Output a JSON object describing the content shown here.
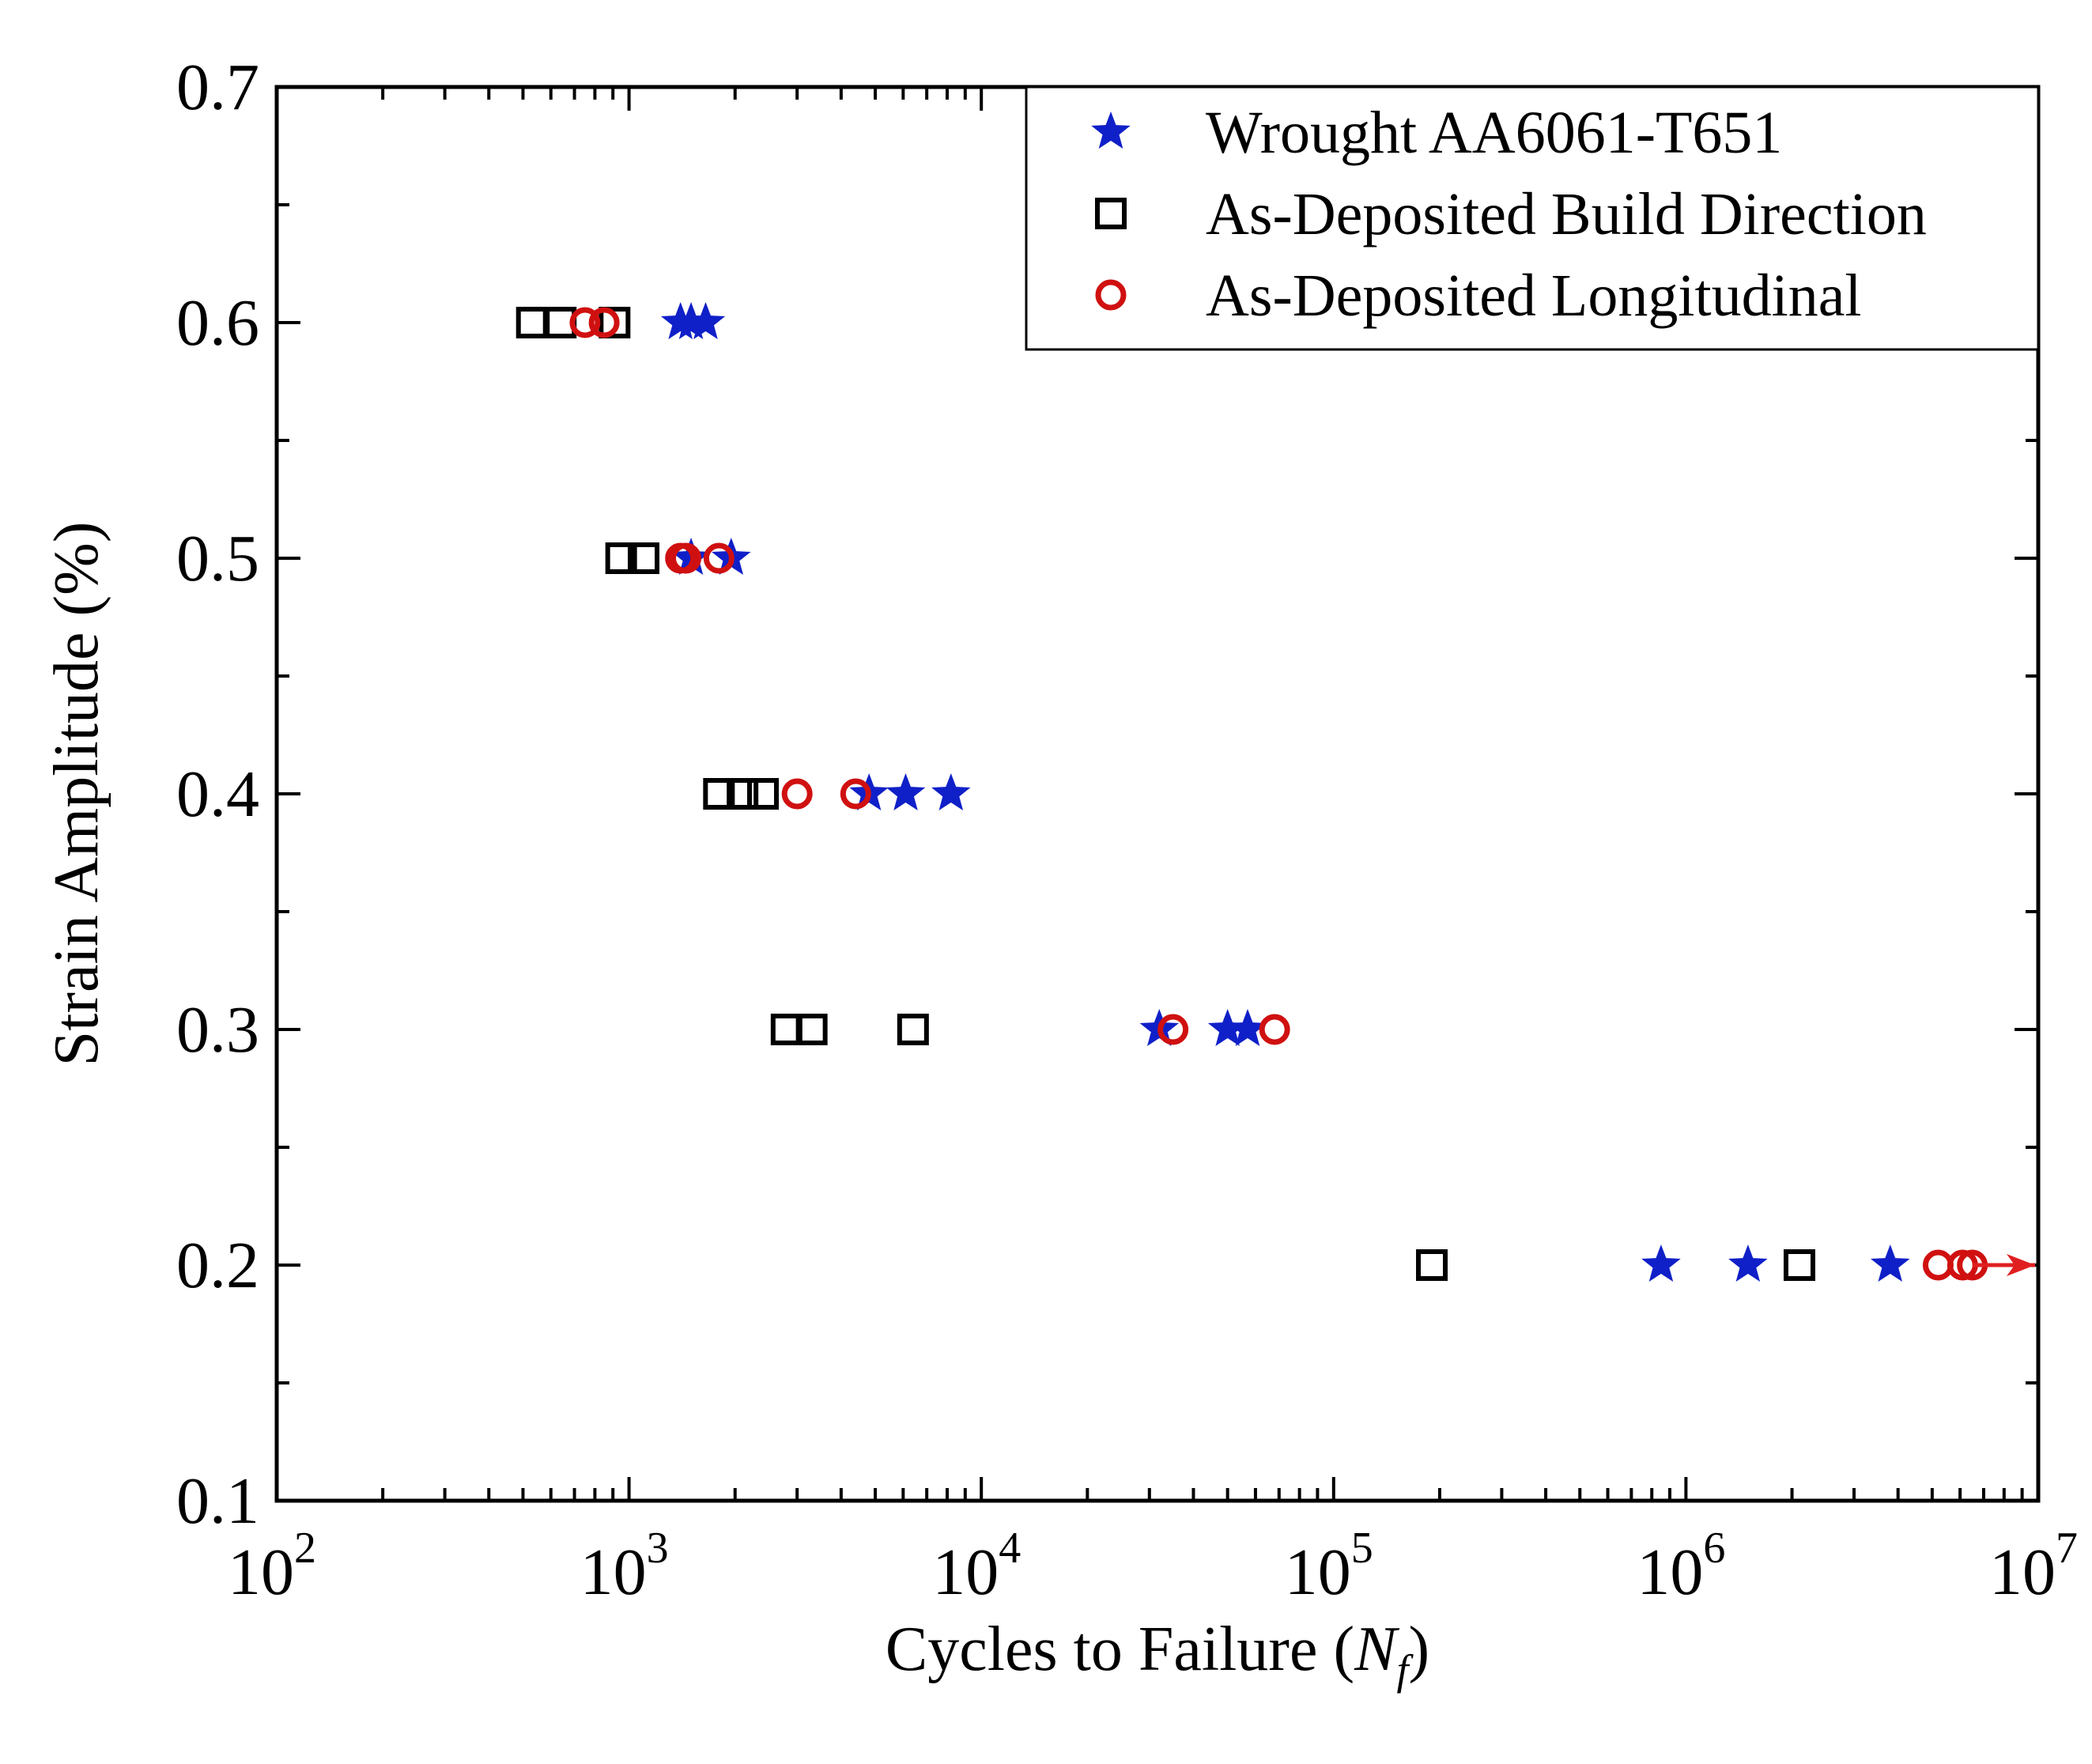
{
  "chart_data": {
    "type": "scatter",
    "title": "",
    "xlabel_prefix": "Cycles to Failure (",
    "xlabel_symbol": "N",
    "xlabel_subscript": "f",
    "xlabel_suffix": ")",
    "ylabel": "Strain Amplitude (%)",
    "x_scale": "log",
    "xlim": [
      100,
      10000000
    ],
    "ylim": [
      0.1,
      0.7
    ],
    "x_ticks": [
      {
        "base": "10",
        "exp": "2",
        "value": 100
      },
      {
        "base": "10",
        "exp": "3",
        "value": 1000
      },
      {
        "base": "10",
        "exp": "4",
        "value": 10000
      },
      {
        "base": "10",
        "exp": "5",
        "value": 100000
      },
      {
        "base": "10",
        "exp": "6",
        "value": 1000000
      },
      {
        "base": "10",
        "exp": "7",
        "value": 10000000
      }
    ],
    "y_ticks": [
      {
        "label": "0.1",
        "value": 0.1
      },
      {
        "label": "0.2",
        "value": 0.2
      },
      {
        "label": "0.3",
        "value": 0.3
      },
      {
        "label": "0.4",
        "value": 0.4
      },
      {
        "label": "0.5",
        "value": 0.5
      },
      {
        "label": "0.6",
        "value": 0.6
      },
      {
        "label": "0.7",
        "value": 0.7
      }
    ],
    "legend_position": "top-right",
    "series": [
      {
        "name": "Wrought AA6061-T651",
        "marker": "star",
        "color": "#1020c8",
        "points": [
          {
            "x": 1400,
            "y": 0.6
          },
          {
            "x": 1500,
            "y": 0.6
          },
          {
            "x": 1650,
            "y": 0.6
          },
          {
            "x": 1500,
            "y": 0.5
          },
          {
            "x": 1950,
            "y": 0.5
          },
          {
            "x": 4800,
            "y": 0.4
          },
          {
            "x": 6100,
            "y": 0.4
          },
          {
            "x": 8200,
            "y": 0.4
          },
          {
            "x": 32000,
            "y": 0.3
          },
          {
            "x": 50000,
            "y": 0.3
          },
          {
            "x": 57000,
            "y": 0.3
          },
          {
            "x": 850000,
            "y": 0.2
          },
          {
            "x": 1500000,
            "y": 0.2
          },
          {
            "x": 3800000,
            "y": 0.2
          }
        ]
      },
      {
        "name": "As-Deposited Build Direction",
        "marker": "square",
        "color": "#000000",
        "points": [
          {
            "x": 530,
            "y": 0.6
          },
          {
            "x": 640,
            "y": 0.6
          },
          {
            "x": 910,
            "y": 0.6
          },
          {
            "x": 950,
            "y": 0.5
          },
          {
            "x": 1100,
            "y": 0.5
          },
          {
            "x": 1800,
            "y": 0.4
          },
          {
            "x": 2100,
            "y": 0.4
          },
          {
            "x": 2400,
            "y": 0.4
          },
          {
            "x": 2800,
            "y": 0.3
          },
          {
            "x": 3300,
            "y": 0.3
          },
          {
            "x": 6400,
            "y": 0.3
          },
          {
            "x": 190000,
            "y": 0.2
          },
          {
            "x": 2100000,
            "y": 0.2
          }
        ]
      },
      {
        "name": "As-Deposited Longitudinal",
        "marker": "circle",
        "color": "#d01010",
        "runout_arrow_color": "#e02020",
        "points": [
          {
            "x": 750,
            "y": 0.6
          },
          {
            "x": 850,
            "y": 0.6
          },
          {
            "x": 1400,
            "y": 0.5
          },
          {
            "x": 1450,
            "y": 0.5
          },
          {
            "x": 1800,
            "y": 0.5
          },
          {
            "x": 3000,
            "y": 0.4
          },
          {
            "x": 4400,
            "y": 0.4
          },
          {
            "x": 35000,
            "y": 0.3
          },
          {
            "x": 68000,
            "y": 0.3
          },
          {
            "x": 5200000,
            "y": 0.2
          },
          {
            "x": 6100000,
            "y": 0.2
          },
          {
            "x": 6500000,
            "y": 0.2,
            "runout": true
          }
        ]
      }
    ]
  }
}
